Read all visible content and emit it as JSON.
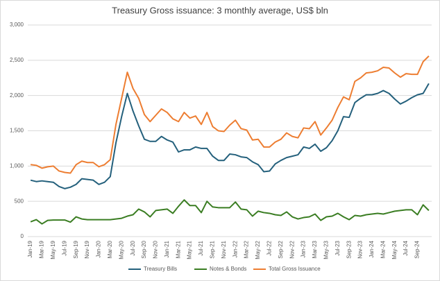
{
  "chart_data": {
    "type": "line",
    "title": "Treasury Gross issuance: 3 monthly average, US$ bln",
    "categories": [
      "Jan-19",
      null,
      "Mar-19",
      null,
      "May-19",
      null,
      "Jul-19",
      null,
      "Sep-19",
      null,
      "Nov-19",
      null,
      "Jan-20",
      null,
      "Mar-20",
      null,
      "May-20",
      null,
      "Jul-20",
      null,
      "Sep-20",
      null,
      "Nov-20",
      null,
      "Jan-21",
      null,
      "Mar-21",
      null,
      "May-21",
      null,
      "Jul-21",
      null,
      "Sep-21",
      null,
      "Nov-21",
      null,
      "Jan-22",
      null,
      "Mar-22",
      null,
      "May-22",
      null,
      "Jul-22",
      null,
      "Sep-22",
      null,
      "Nov-22",
      null,
      "Jan-23",
      null,
      "Mar-23",
      null,
      "May-23",
      null,
      "Jul-23",
      null,
      "Sep-23",
      null,
      "Nov-23",
      null,
      "Jan-24",
      null,
      "Mar-24",
      null,
      "May-24",
      null,
      "Jul-24",
      null,
      "Sep-24",
      null,
      null
    ],
    "series": [
      {
        "name": "Treasury Bills",
        "color": "#24607c",
        "values": [
          800,
          780,
          790,
          780,
          770,
          710,
          680,
          700,
          740,
          820,
          810,
          800,
          740,
          770,
          850,
          1330,
          1700,
          2030,
          1780,
          1570,
          1380,
          1350,
          1350,
          1420,
          1370,
          1340,
          1200,
          1230,
          1230,
          1270,
          1250,
          1250,
          1140,
          1080,
          1080,
          1170,
          1160,
          1130,
          1120,
          1060,
          1020,
          920,
          930,
          1030,
          1080,
          1120,
          1140,
          1160,
          1270,
          1250,
          1310,
          1210,
          1260,
          1360,
          1500,
          1700,
          1690,
          1900,
          1960,
          2010,
          2010,
          2030,
          2070,
          2030,
          1950,
          1880,
          1920,
          1970,
          2010,
          2030,
          2170
        ]
      },
      {
        "name": "Notes & Bonds",
        "color": "#3a7d22",
        "values": [
          210,
          240,
          180,
          230,
          235,
          235,
          235,
          205,
          280,
          250,
          240,
          240,
          240,
          240,
          240,
          250,
          260,
          290,
          310,
          390,
          350,
          280,
          370,
          380,
          390,
          330,
          430,
          520,
          440,
          440,
          340,
          500,
          420,
          410,
          410,
          410,
          490,
          390,
          380,
          290,
          360,
          340,
          330,
          310,
          300,
          350,
          280,
          250,
          270,
          280,
          320,
          230,
          280,
          290,
          330,
          280,
          240,
          300,
          290,
          310,
          320,
          330,
          320,
          340,
          360,
          370,
          380,
          380,
          310,
          450,
          370
        ]
      },
      {
        "name": "Total Gross Issuance",
        "color": "#ed7d31",
        "values": [
          1020,
          1010,
          970,
          990,
          1000,
          930,
          910,
          900,
          1020,
          1070,
          1050,
          1050,
          990,
          1020,
          1090,
          1590,
          1960,
          2330,
          2100,
          1960,
          1730,
          1630,
          1720,
          1810,
          1760,
          1670,
          1630,
          1760,
          1680,
          1710,
          1590,
          1760,
          1560,
          1500,
          1490,
          1580,
          1650,
          1530,
          1510,
          1370,
          1380,
          1270,
          1270,
          1340,
          1380,
          1470,
          1420,
          1400,
          1540,
          1530,
          1630,
          1440,
          1540,
          1650,
          1830,
          1980,
          1940,
          2200,
          2250,
          2320,
          2330,
          2350,
          2400,
          2390,
          2320,
          2260,
          2310,
          2300,
          2300,
          2480,
          2560
        ]
      }
    ],
    "ylim": [
      0,
      3000
    ],
    "yticks": [
      0,
      500,
      {
        "value": 1000,
        "label": "1,000"
      },
      {
        "value": 1500,
        "label": "1,500"
      },
      {
        "value": 2000,
        "label": "2,000"
      },
      {
        "value": 2500,
        "label": "2,500"
      },
      {
        "value": 3000,
        "label": "3,000"
      }
    ],
    "grid": true,
    "legend": "bottom"
  }
}
